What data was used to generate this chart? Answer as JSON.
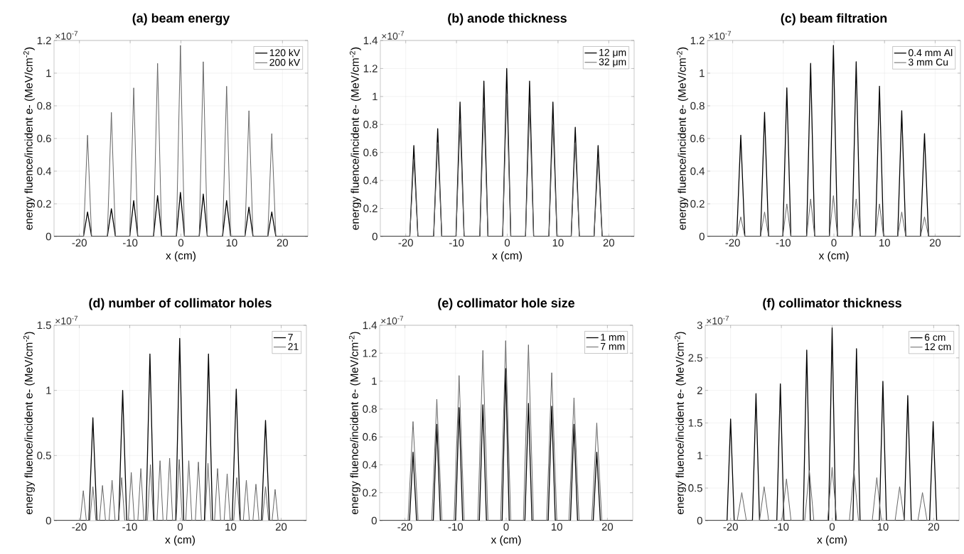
{
  "chart_data": [
    {
      "type": "line",
      "title": "(a) beam energy",
      "xlabel": "x (cm)",
      "ylabel": "energy fluence/incident e- (MeV/cm$^{-2}$)",
      "annotations": [
        "×10$^{-7}$"
      ],
      "xlim": [
        -25,
        25
      ],
      "xticks": [
        -20,
        -10,
        0,
        10,
        20
      ],
      "ylim": [
        0,
        1.2
      ],
      "yticks": [
        0,
        0.2,
        0.4,
        0.6,
        0.8,
        1,
        1.2
      ],
      "grid": true,
      "legend": "top right",
      "marker": "none",
      "line_style": "solid",
      "series": [
        {
          "name": "120 kV",
          "color": "#000000",
          "x": [
            -25,
            -19.2,
            -18.4,
            -17.6,
            -14.5,
            -13.7,
            -12.9,
            -10.1,
            -9.3,
            -8.5,
            -5.4,
            -4.6,
            -3.8,
            -0.9,
            -0.1,
            0.7,
            3.6,
            4.4,
            5.2,
            8.2,
            9.0,
            9.8,
            12.6,
            13.4,
            14.2,
            17.1,
            17.9,
            18.7,
            25
          ],
          "values": [
            0,
            0,
            0.15,
            0,
            0,
            0.17,
            0,
            0,
            0.22,
            0,
            0,
            0.25,
            0,
            0,
            0.27,
            0,
            0,
            0.26,
            0,
            0,
            0.22,
            0,
            0,
            0.18,
            0,
            0,
            0.15,
            0,
            0
          ]
        },
        {
          "name": "200 kV",
          "color": "#666666",
          "x": [
            -25,
            -19.2,
            -18.4,
            -17.6,
            -14.5,
            -13.7,
            -12.9,
            -10.1,
            -9.3,
            -8.5,
            -5.4,
            -4.6,
            -3.8,
            -0.9,
            -0.1,
            0.7,
            3.6,
            4.4,
            5.2,
            8.2,
            9.0,
            9.8,
            12.6,
            13.4,
            14.2,
            17.1,
            17.9,
            18.7,
            25
          ],
          "values": [
            0,
            0,
            0.62,
            0,
            0,
            0.76,
            0,
            0,
            0.91,
            0,
            0,
            1.06,
            0,
            0,
            1.17,
            0,
            0,
            1.07,
            0,
            0,
            0.92,
            0,
            0,
            0.77,
            0,
            0,
            0.63,
            0,
            0
          ]
        }
      ]
    },
    {
      "type": "line",
      "title": "(b) anode thickness",
      "xlabel": "x (cm)",
      "ylabel": "energy fluence/incident e- (MeV/cm$^{-2}$)",
      "annotations": [
        "×10$^{-7}$"
      ],
      "xlim": [
        -25,
        25
      ],
      "xticks": [
        -20,
        -10,
        0,
        10,
        20
      ],
      "ylim": [
        0,
        1.4
      ],
      "yticks": [
        0,
        0.2,
        0.4,
        0.6,
        0.8,
        1,
        1.2,
        1.4
      ],
      "grid": true,
      "legend": "top right",
      "marker": "none",
      "line_style": "solid",
      "series": [
        {
          "name": "12 μm",
          "color": "#000000",
          "x": [
            -25,
            -19.2,
            -18.4,
            -17.6,
            -14.5,
            -13.7,
            -12.9,
            -10.1,
            -9.3,
            -8.5,
            -5.4,
            -4.6,
            -3.8,
            -0.9,
            -0.1,
            0.7,
            3.6,
            4.4,
            5.2,
            8.2,
            9.0,
            9.8,
            12.6,
            13.4,
            14.2,
            17.1,
            17.9,
            18.7,
            25
          ],
          "values": [
            0,
            0,
            0.65,
            0,
            0,
            0.77,
            0,
            0,
            0.96,
            0,
            0,
            1.11,
            0,
            0,
            1.2,
            0,
            0,
            1.11,
            0,
            0,
            0.96,
            0,
            0,
            0.78,
            0,
            0,
            0.65,
            0,
            0
          ]
        },
        {
          "name": "32 μm",
          "color": "#666666",
          "x": [
            -25,
            -19.2,
            -18.4,
            -17.6,
            -14.5,
            -13.7,
            -12.9,
            -10.1,
            -9.3,
            -8.5,
            -5.4,
            -4.6,
            -3.8,
            -0.9,
            -0.1,
            0.7,
            3.6,
            4.4,
            5.2,
            8.2,
            9.0,
            9.8,
            12.6,
            13.4,
            14.2,
            17.1,
            17.9,
            18.7,
            25
          ],
          "values": [
            0,
            0,
            0.55,
            0,
            0,
            0.67,
            0,
            0,
            0.8,
            0,
            0,
            0.92,
            0,
            0,
            1.02,
            0,
            0,
            0.92,
            0,
            0,
            0.8,
            0,
            0,
            0.67,
            0,
            0,
            0.55,
            0,
            0
          ]
        }
      ]
    },
    {
      "type": "line",
      "title": "(c) beam filtration",
      "xlabel": "x (cm)",
      "ylabel": "energy fluence/incident e- (MeV/cm$^{-2}$)",
      "annotations": [
        "×10$^{-7}$"
      ],
      "xlim": [
        -25,
        25
      ],
      "xticks": [
        -20,
        -10,
        0,
        10,
        20
      ],
      "ylim": [
        0,
        1.2
      ],
      "yticks": [
        0,
        0.2,
        0.4,
        0.6,
        0.8,
        1,
        1.2
      ],
      "grid": true,
      "legend": "top right",
      "marker": "none",
      "line_style": "solid",
      "series": [
        {
          "name": "0.4 mm Al",
          "color": "#000000",
          "x": [
            -25,
            -19.2,
            -18.4,
            -17.6,
            -14.5,
            -13.7,
            -12.9,
            -10.1,
            -9.3,
            -8.5,
            -5.4,
            -4.6,
            -3.8,
            -0.9,
            -0.1,
            0.7,
            3.6,
            4.4,
            5.2,
            8.2,
            9.0,
            9.8,
            12.6,
            13.4,
            14.2,
            17.1,
            17.9,
            18.7,
            25
          ],
          "values": [
            0,
            0,
            0.62,
            0,
            0,
            0.76,
            0,
            0,
            0.91,
            0,
            0,
            1.06,
            0,
            0,
            1.17,
            0,
            0,
            1.07,
            0,
            0,
            0.92,
            0,
            0,
            0.77,
            0,
            0,
            0.63,
            0,
            0
          ]
        },
        {
          "name": "3 mm Cu",
          "color": "#666666",
          "x": [
            -25,
            -19.2,
            -18.4,
            -17.6,
            -14.5,
            -13.7,
            -12.9,
            -10.1,
            -9.3,
            -8.5,
            -5.4,
            -4.6,
            -3.8,
            -0.9,
            -0.1,
            0.7,
            3.6,
            4.4,
            5.2,
            8.2,
            9.0,
            9.8,
            12.6,
            13.4,
            14.2,
            17.1,
            17.9,
            18.7,
            25
          ],
          "values": [
            0,
            0,
            0.12,
            0,
            0,
            0.15,
            0,
            0,
            0.2,
            0,
            0,
            0.23,
            0,
            0,
            0.25,
            0,
            0,
            0.23,
            0,
            0,
            0.2,
            0,
            0,
            0.15,
            0,
            0,
            0.12,
            0,
            0
          ]
        }
      ]
    },
    {
      "type": "line",
      "title": "(d) number of collimator holes",
      "xlabel": "x (cm)",
      "ylabel": "energy fluence/incident e- (MeV/cm$^{-2}$)",
      "annotations": [
        "×10$^{-7}$"
      ],
      "xlim": [
        -25,
        25
      ],
      "xticks": [
        -20,
        -10,
        0,
        10,
        20
      ],
      "ylim": [
        0,
        1.5
      ],
      "yticks": [
        0,
        0.5,
        1,
        1.5
      ],
      "grid": true,
      "legend": "top right",
      "marker": "none",
      "line_style": "solid",
      "series": [
        {
          "name": "7",
          "color": "#000000",
          "x": [
            -25,
            -18.1,
            -17.3,
            -16.5,
            -12.2,
            -11.4,
            -10.6,
            -6.8,
            -6.0,
            -5.2,
            -0.9,
            -0.1,
            0.7,
            4.8,
            5.6,
            6.4,
            10.3,
            11.1,
            11.9,
            16.1,
            16.9,
            17.7,
            25
          ],
          "values": [
            0,
            0,
            0.79,
            0,
            0,
            1.0,
            0,
            0,
            1.28,
            0,
            0,
            1.4,
            0,
            0,
            1.28,
            0,
            0,
            1.01,
            0,
            0,
            0.77,
            0,
            0
          ]
        },
        {
          "name": "21",
          "color": "#666666",
          "x": [
            -25,
            -19.8,
            -19.2,
            -18.6,
            -17.9,
            -17.3,
            -16.7,
            -16.0,
            -15.4,
            -14.8,
            -14.1,
            -13.5,
            -12.9,
            -12.2,
            -11.6,
            -11.0,
            -10.3,
            -9.7,
            -9.1,
            -8.4,
            -7.8,
            -7.2,
            -6.5,
            -5.9,
            -5.3,
            -4.6,
            -4.0,
            -3.4,
            -2.7,
            -2.1,
            -1.5,
            -0.8,
            -0.2,
            0.4,
            1.1,
            1.7,
            2.3,
            3.0,
            3.6,
            4.2,
            4.9,
            5.5,
            6.1,
            6.8,
            7.4,
            8.0,
            8.7,
            9.3,
            9.9,
            10.6,
            11.2,
            11.8,
            12.5,
            13.1,
            13.7,
            14.4,
            15.0,
            15.6,
            16.3,
            16.9,
            17.5,
            18.2,
            18.8,
            19.4,
            25
          ],
          "values": [
            0,
            0,
            0.23,
            0,
            0,
            0.26,
            0,
            0,
            0.27,
            0,
            0,
            0.31,
            0,
            0,
            0.33,
            0,
            0,
            0.37,
            0,
            0,
            0.4,
            0,
            0,
            0.43,
            0,
            0,
            0.46,
            0,
            0,
            0.48,
            0,
            0,
            0.47,
            0,
            0,
            0.46,
            0,
            0,
            0.45,
            0,
            0,
            0.44,
            0,
            0,
            0.4,
            0,
            0,
            0.36,
            0,
            0,
            0.33,
            0,
            0,
            0.31,
            0,
            0,
            0.28,
            0,
            0,
            0.26,
            0,
            0,
            0.24,
            0,
            0
          ]
        }
      ]
    },
    {
      "type": "line",
      "title": "(e) collimator hole size",
      "xlabel": "x (cm)",
      "ylabel": "energy fluence/incident e- (MeV/cm$^{-2}$)",
      "annotations": [
        "×10$^{-7}$"
      ],
      "xlim": [
        -25,
        25
      ],
      "xticks": [
        -20,
        -10,
        0,
        10,
        20
      ],
      "ylim": [
        0,
        1.4
      ],
      "yticks": [
        0,
        0.2,
        0.4,
        0.6,
        0.8,
        1,
        1.2,
        1.4
      ],
      "grid": true,
      "legend": "top right",
      "marker": "none",
      "line_style": "solid",
      "series": [
        {
          "name": "1 mm",
          "color": "#000000",
          "x": [
            -25,
            -19.1,
            -18.4,
            -17.7,
            -14.4,
            -13.7,
            -13.0,
            -10.0,
            -9.3,
            -8.6,
            -5.3,
            -4.6,
            -3.9,
            -0.8,
            -0.1,
            0.6,
            3.7,
            4.4,
            5.1,
            8.3,
            9.0,
            9.7,
            12.7,
            13.4,
            14.1,
            17.2,
            17.9,
            18.6,
            25
          ],
          "values": [
            0,
            0,
            0.49,
            0,
            0,
            0.69,
            0,
            0,
            0.81,
            0,
            0,
            0.83,
            0,
            0,
            1.09,
            0,
            0,
            0.84,
            0,
            0,
            0.82,
            0,
            0,
            0.69,
            0,
            0,
            0.49,
            0,
            0
          ]
        },
        {
          "name": "7 mm",
          "color": "#666666",
          "x": [
            -25,
            -19.4,
            -18.4,
            -17.4,
            -14.7,
            -13.7,
            -12.7,
            -10.3,
            -9.3,
            -8.3,
            -5.6,
            -4.6,
            -3.6,
            -1.1,
            -0.1,
            0.9,
            3.4,
            4.4,
            5.4,
            8.0,
            9.0,
            10.0,
            12.4,
            13.4,
            14.4,
            16.9,
            17.9,
            18.9,
            25
          ],
          "values": [
            0,
            0,
            0.71,
            0,
            0,
            0.87,
            0,
            0,
            1.04,
            0,
            0,
            1.22,
            0,
            0,
            1.29,
            0,
            0,
            1.26,
            0,
            0,
            1.06,
            0,
            0,
            0.88,
            0,
            0,
            0.7,
            0,
            0
          ]
        }
      ]
    },
    {
      "type": "line",
      "title": "(f) collimator thickness",
      "xlabel": "x (cm)",
      "ylabel": "energy fluence/incident e- (MeV/cm$^{-2}$)",
      "annotations": [
        "×10$^{-7}$"
      ],
      "xlim": [
        -25,
        25
      ],
      "xticks": [
        -20,
        -10,
        0,
        10,
        20
      ],
      "ylim": [
        0,
        3
      ],
      "yticks": [
        0,
        0.5,
        1,
        1.5,
        2,
        2.5,
        3
      ],
      "grid": true,
      "legend": "top right",
      "marker": "none",
      "line_style": "solid",
      "series": [
        {
          "name": "6 cm",
          "color": "#000000",
          "x": [
            -25,
            -20.7,
            -20.0,
            -19.3,
            -15.7,
            -15.0,
            -14.3,
            -10.9,
            -10.2,
            -9.5,
            -5.7,
            -5.0,
            -4.3,
            -0.7,
            0.0,
            0.7,
            4.1,
            4.8,
            5.5,
            9.3,
            10.0,
            10.7,
            14.2,
            14.9,
            15.6,
            19.2,
            19.9,
            20.6,
            25
          ],
          "values": [
            0,
            0,
            1.56,
            0,
            0,
            1.95,
            0,
            0,
            2.1,
            0,
            0,
            2.62,
            0,
            0,
            2.96,
            0,
            0,
            2.64,
            0,
            0,
            2.14,
            0,
            0,
            1.92,
            0,
            0,
            1.52,
            0,
            0
          ]
        },
        {
          "name": "12 cm",
          "color": "#666666",
          "x": [
            -25,
            -18.7,
            -17.8,
            -16.9,
            -14.3,
            -13.4,
            -12.5,
            -9.9,
            -9.0,
            -8.1,
            -5.4,
            -4.5,
            -3.6,
            -0.9,
            0.0,
            0.9,
            3.4,
            4.3,
            5.2,
            7.9,
            8.8,
            9.7,
            12.4,
            13.3,
            14.2,
            16.9,
            17.8,
            18.7,
            25
          ],
          "values": [
            0,
            0,
            0.43,
            0,
            0,
            0.52,
            0,
            0,
            0.64,
            0,
            0,
            0.77,
            0,
            0,
            0.82,
            0,
            0,
            0.77,
            0,
            0,
            0.66,
            0,
            0,
            0.52,
            0,
            0,
            0.43,
            0,
            0
          ]
        }
      ]
    }
  ]
}
